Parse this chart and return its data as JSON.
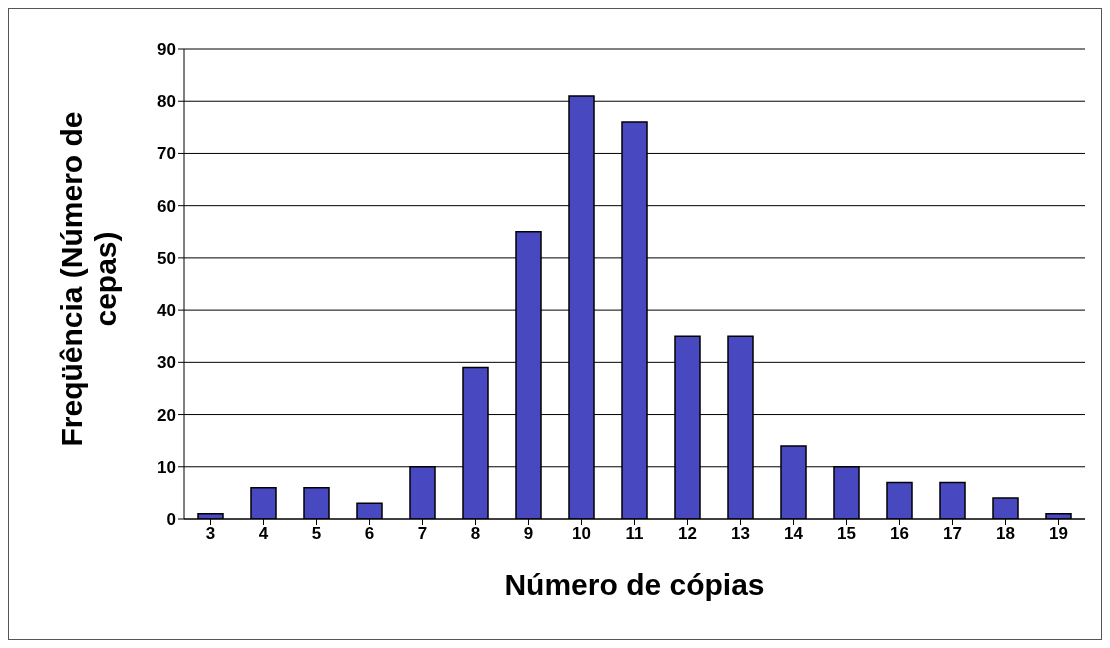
{
  "chart_data": {
    "type": "bar",
    "xlabel": "Número de cópias",
    "ylabel": "Freqüência (Número de cepas)",
    "categories": [
      "3",
      "4",
      "5",
      "6",
      "7",
      "8",
      "9",
      "10",
      "11",
      "12",
      "13",
      "14",
      "15",
      "16",
      "17",
      "18",
      "19"
    ],
    "values": [
      1,
      6,
      6,
      3,
      10,
      29,
      55,
      81,
      76,
      35,
      35,
      14,
      10,
      7,
      7,
      4,
      1
    ],
    "color": "#4848c0",
    "ylim": [
      0,
      90
    ],
    "yticks": [
      0,
      10,
      20,
      30,
      40,
      50,
      60,
      70,
      80,
      90
    ],
    "grid": "y"
  }
}
